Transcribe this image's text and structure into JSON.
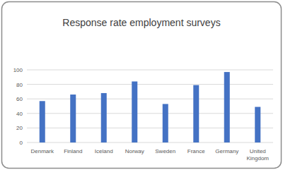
{
  "chart_data": {
    "type": "bar",
    "title": "Response rate employment surveys",
    "categories": [
      "Denmark",
      "Finland",
      "Iceland",
      "Norway",
      "Sweden",
      "France",
      "Germany",
      "United Kingdom"
    ],
    "values": [
      57,
      66,
      68,
      84,
      53,
      79,
      97,
      49
    ],
    "color": "#4472c4",
    "ylim": [
      0,
      100
    ],
    "yticks": [
      0,
      20,
      40,
      60,
      80,
      100
    ],
    "grid": true
  }
}
